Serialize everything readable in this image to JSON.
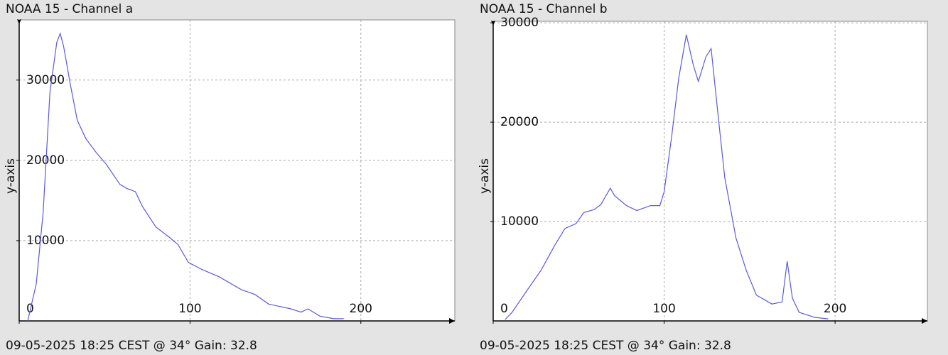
{
  "chart_data": [
    {
      "type": "line",
      "title": "NOAA 15 - Channel a",
      "ylabel": "y-axis",
      "caption": "09-05-2025 18:25 CEST @ 34° Gain: 32.8",
      "x": [
        5,
        10,
        14,
        18,
        22,
        24,
        26,
        30,
        34,
        39,
        45,
        51,
        59,
        63,
        68,
        72,
        80,
        88,
        93,
        99,
        107,
        117,
        130,
        138,
        146,
        159,
        165,
        169,
        176,
        184,
        190
      ],
      "series": [
        {
          "color": "#5a5ae0",
          "values": [
            0,
            4600,
            13500,
            28500,
            34700,
            35800,
            34200,
            29400,
            25000,
            22700,
            21000,
            19500,
            17000,
            16500,
            16100,
            14300,
            11700,
            10400,
            9500,
            7300,
            6400,
            5500,
            3900,
            3300,
            2100,
            1500,
            1100,
            1500,
            600,
            270,
            270
          ]
        }
      ],
      "xlim": [
        0,
        255
      ],
      "ylim": [
        0,
        37500
      ],
      "xticks": [
        0,
        100,
        200
      ],
      "yticks": [
        10000,
        20000,
        30000
      ],
      "grid": true
    },
    {
      "type": "line",
      "title": "NOAA 15 - Channel b",
      "ylabel": "y-axis",
      "caption": "09-05-2025 18:25 CEST @ 34° Gain: 32.8",
      "x": [
        7,
        11,
        19.5,
        28,
        36,
        42,
        48.5,
        53,
        59,
        63,
        68.5,
        71,
        78,
        84,
        92,
        97.5,
        100,
        104.5,
        108.5,
        113,
        117,
        120,
        124.5,
        127.5,
        131.5,
        135.5,
        142,
        148,
        154,
        163,
        169,
        172,
        175,
        179,
        188,
        196
      ],
      "series": [
        {
          "color": "#5a5ae0",
          "values": [
            140,
            860,
            3000,
            5100,
            7600,
            9300,
            9800,
            10900,
            11200,
            11700,
            13350,
            12600,
            11600,
            11100,
            11600,
            11600,
            13000,
            18700,
            24400,
            28800,
            25800,
            24100,
            26600,
            27400,
            20800,
            14400,
            8350,
            5100,
            2600,
            1700,
            1900,
            6000,
            2300,
            860,
            360,
            210
          ]
        }
      ],
      "xlim": [
        0,
        254
      ],
      "ylim": [
        0,
        30150
      ],
      "xticks": [
        0,
        100,
        200
      ],
      "yticks": [
        10000,
        20000,
        30000
      ],
      "grid": true
    }
  ]
}
